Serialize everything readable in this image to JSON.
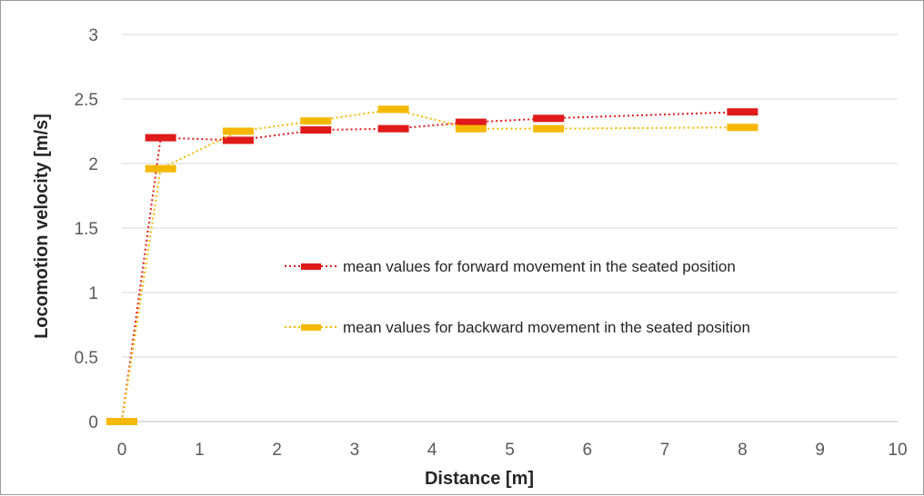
{
  "chart_data": {
    "type": "line",
    "xlabel": "Distance [m]",
    "ylabel": "Locomotion velocity [m/s]",
    "xlim": [
      0,
      10
    ],
    "ylim": [
      0,
      3
    ],
    "x_ticks": [
      "0",
      "1",
      "2",
      "3",
      "4",
      "5",
      "6",
      "7",
      "8",
      "9",
      "10"
    ],
    "y_ticks": [
      "0",
      "0.5",
      "1",
      "1.5",
      "2",
      "2.5",
      "3"
    ],
    "grid": true,
    "legend_position": "center-right",
    "series": [
      {
        "name": "mean values for forward movement in the seated position",
        "color": "#e01a1a",
        "line_style": "dotted",
        "marker": "dash",
        "x": [
          0,
          0.5,
          1.5,
          2.5,
          3.5,
          4.5,
          5.5,
          8
        ],
        "y": [
          0,
          2.2,
          2.18,
          2.26,
          2.27,
          2.32,
          2.35,
          2.4
        ]
      },
      {
        "name": "mean values for backward movement in the seated position",
        "color": "#f5b800",
        "line_style": "dotted",
        "marker": "dash",
        "x": [
          0,
          0.5,
          1.5,
          2.5,
          3.5,
          4.5,
          5.5,
          8
        ],
        "y": [
          0,
          1.96,
          2.25,
          2.33,
          2.42,
          2.27,
          2.27,
          2.28
        ]
      }
    ]
  }
}
